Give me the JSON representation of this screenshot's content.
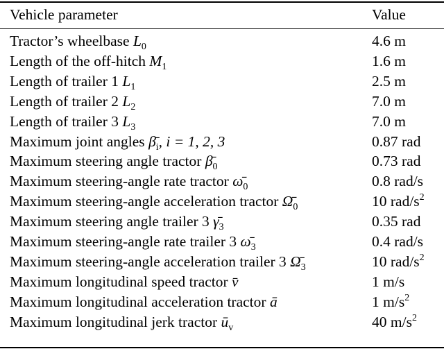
{
  "header": {
    "parameter": "Vehicle parameter",
    "value": "Value"
  },
  "rows": [
    {
      "label": "Tractor’s wheelbase ",
      "sym": "L",
      "sub": "0",
      "value": "4.6 m",
      "sup": ""
    },
    {
      "label": "Length of the off-hitch ",
      "sym": "M",
      "sub": "1",
      "value": "1.6 m",
      "sup": ""
    },
    {
      "label": "Length of trailer 1 ",
      "sym": "L",
      "sub": "1",
      "value": "2.5 m",
      "sup": ""
    },
    {
      "label": "Length of trailer 2 ",
      "sym": "L",
      "sub": "2",
      "value": "7.0 m",
      "sup": ""
    },
    {
      "label": "Length of trailer 3 ",
      "sym": "L",
      "sub": "3",
      "value": "7.0 m",
      "sup": ""
    },
    {
      "label": "Maximum joint angles ",
      "sym": "β̄",
      "sub": "i",
      "extra": ", i = 1, 2, 3",
      "value": "0.87 rad",
      "sup": ""
    },
    {
      "label": "Maximum steering angle tractor ",
      "sym": "β̄",
      "sub": "0",
      "value": "0.73 rad",
      "sup": ""
    },
    {
      "label": "Maximum steering-angle rate tractor ",
      "sym": "ω̄",
      "sub": "0",
      "value": "0.8 rad/s",
      "sup": ""
    },
    {
      "label": "Maximum steering-angle acceleration tractor ",
      "sym": "Ω̄",
      "sub": "0",
      "value": "10 rad/s",
      "sup": "2"
    },
    {
      "label": "Maximum steering angle trailer 3 ",
      "sym": "γ̄",
      "sub": "3",
      "value": "0.35 rad",
      "sup": ""
    },
    {
      "label": "Maximum steering-angle rate trailer 3 ",
      "sym": "ω̄",
      "sub": "3",
      "value": "0.4 rad/s",
      "sup": ""
    },
    {
      "label": "Maximum steering-angle acceleration trailer 3 ",
      "sym": "Ω̄",
      "sub": "3",
      "value": "10 rad/s",
      "sup": "2"
    },
    {
      "label": "Maximum longitudinal speed tractor ",
      "sym": "v̄",
      "sub": "",
      "value": "1 m/s",
      "sup": ""
    },
    {
      "label": "Maximum longitudinal acceleration tractor ",
      "sym": "ā",
      "sub": "",
      "value": "1 m/s",
      "sup": "2"
    },
    {
      "label": "Maximum longitudinal jerk tractor ",
      "sym": "ū",
      "sub": "v",
      "value": "40 m/s",
      "sup": "2"
    }
  ]
}
